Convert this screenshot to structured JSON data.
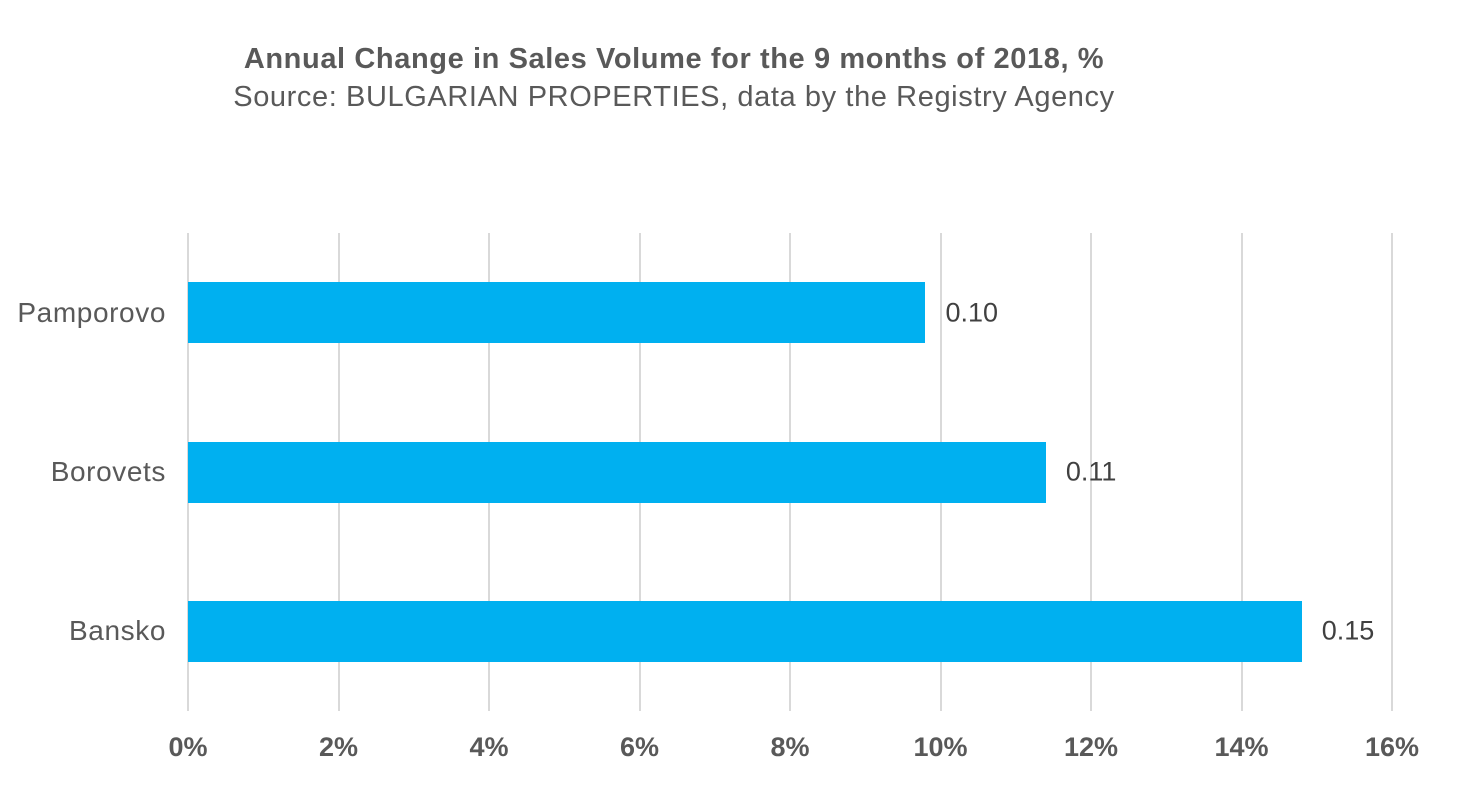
{
  "chart_data": {
    "type": "bar",
    "orientation": "horizontal",
    "title": "Annual Change in Sales Volume for the 9 months of 2018, %",
    "subtitle": "Source: BULGARIAN PROPERTIES, data by the Registry Agency",
    "categories": [
      "Pamporovo",
      "Borovets",
      "Bansko"
    ],
    "values_percent": [
      9.8,
      11.4,
      14.8
    ],
    "data_labels": [
      "0.10",
      "0.11",
      "0.15"
    ],
    "x_ticks": [
      "0%",
      "2%",
      "4%",
      "6%",
      "8%",
      "10%",
      "12%",
      "14%",
      "16%"
    ],
    "xlabel": "",
    "ylabel": "",
    "xlim": [
      0,
      16
    ],
    "grid": true,
    "legend": "none",
    "colors": {
      "bar": "#00B0F0",
      "gridline": "#D9D9D9",
      "title_text": "#595959",
      "category_text": "#595959",
      "axis_text": "#595959",
      "data_label_text": "#404040",
      "background": "#FFFFFF"
    }
  }
}
